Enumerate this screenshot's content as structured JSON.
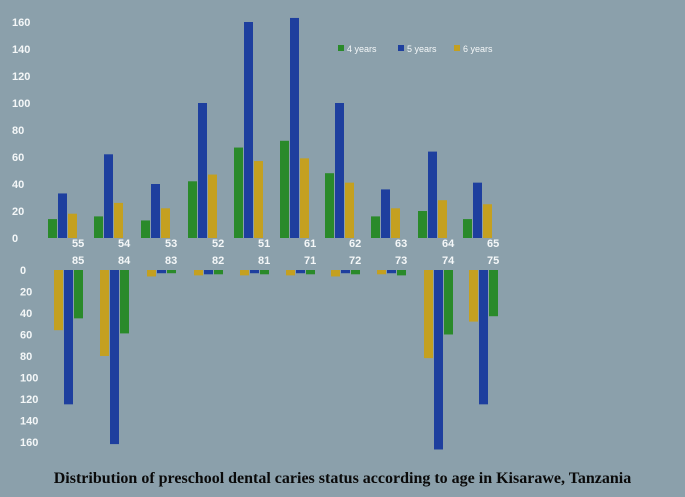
{
  "chart_data": [
    {
      "type": "bar",
      "name": "upper-jaw",
      "categories": [
        "55",
        "54",
        "53",
        "52",
        "51",
        "61",
        "62",
        "63",
        "64",
        "65"
      ],
      "series": [
        {
          "name": "4 years",
          "color": "#2a8a2a",
          "values": [
            14,
            16,
            13,
            42,
            67,
            72,
            48,
            16,
            20,
            14
          ]
        },
        {
          "name": "5 years",
          "color": "#1e3f9e",
          "values": [
            33,
            62,
            40,
            100,
            160,
            163,
            100,
            36,
            64,
            41
          ]
        },
        {
          "name": "6 years",
          "color": "#c4a020",
          "values": [
            18,
            26,
            22,
            47,
            57,
            59,
            41,
            22,
            28,
            25
          ]
        }
      ],
      "yticks": [
        0,
        20,
        40,
        60,
        80,
        100,
        120,
        140,
        160
      ],
      "ylim": [
        0,
        170
      ]
    },
    {
      "type": "bar",
      "name": "lower-jaw",
      "categories": [
        "85",
        "84",
        "83",
        "82",
        "81",
        "71",
        "72",
        "73",
        "74",
        "75"
      ],
      "series": [
        {
          "name": "6 years",
          "color": "#c4a020",
          "values": [
            56,
            80,
            6,
            5,
            5,
            5,
            6,
            4,
            82,
            48
          ]
        },
        {
          "name": "5 years",
          "color": "#1e3f9e",
          "values": [
            125,
            162,
            3,
            4,
            3,
            3,
            3,
            3,
            167,
            125
          ]
        },
        {
          "name": "4 years",
          "color": "#2a8a2a",
          "values": [
            45,
            59,
            3,
            4,
            4,
            4,
            4,
            5,
            60,
            43
          ]
        }
      ],
      "yticks": [
        0,
        20,
        40,
        60,
        80,
        100,
        120,
        140,
        160
      ],
      "ylim": [
        0,
        170
      ],
      "inverted": true
    }
  ],
  "legend": [
    "4 years",
    "5 years",
    "6 years"
  ],
  "title": "Distribution of preschool dental caries status according to age in Kisarawe, Tanzania",
  "colors": {
    "background": "#8ba0ab",
    "text": "#f4f7f8",
    "title": "#0a0a0a"
  }
}
